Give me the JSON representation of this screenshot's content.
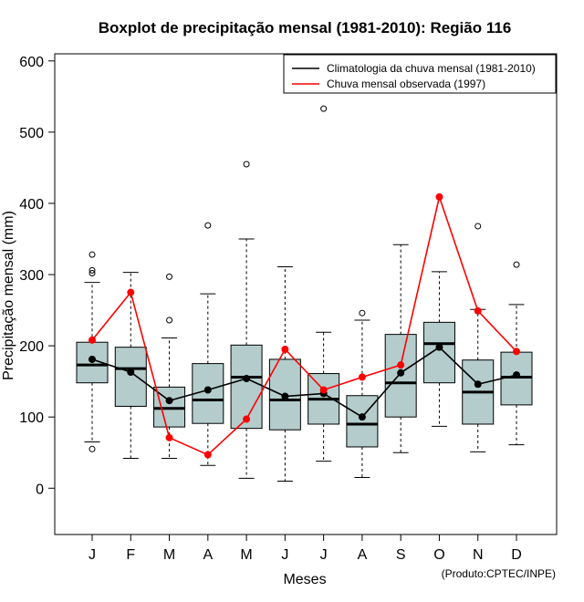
{
  "chart_data": {
    "type": "boxplot",
    "title": "Boxplot de precipitação mensal (1981-2010): Região 116",
    "xlabel": "Meses",
    "ylabel": "Precipitação mensal (mm)",
    "ylim": [
      -65,
      610
    ],
    "yticks": [
      0,
      100,
      200,
      300,
      400,
      500,
      600
    ],
    "categories": [
      "J",
      "F",
      "M",
      "A",
      "M",
      "J",
      "J",
      "A",
      "S",
      "O",
      "N",
      "D"
    ],
    "boxes": [
      {
        "whisker_low": 65,
        "q1": 148,
        "median": 173,
        "q3": 205,
        "whisker_high": 289,
        "outliers": [
          55,
          302,
          306,
          328
        ]
      },
      {
        "whisker_low": 42,
        "q1": 115,
        "median": 168,
        "q3": 198,
        "whisker_high": 303,
        "outliers": []
      },
      {
        "whisker_low": 42,
        "q1": 86,
        "median": 112,
        "q3": 142,
        "whisker_high": 211,
        "outliers": [
          236,
          297
        ]
      },
      {
        "whisker_low": 32,
        "q1": 91,
        "median": 124,
        "q3": 175,
        "whisker_high": 273,
        "outliers": [
          369
        ]
      },
      {
        "whisker_low": 14,
        "q1": 84,
        "median": 156,
        "q3": 201,
        "whisker_high": 350,
        "outliers": [
          455
        ]
      },
      {
        "whisker_low": 10,
        "q1": 82,
        "median": 124,
        "q3": 181,
        "whisker_high": 311,
        "outliers": []
      },
      {
        "whisker_low": 38,
        "q1": 90,
        "median": 125,
        "q3": 161,
        "whisker_high": 219,
        "outliers": [
          533
        ]
      },
      {
        "whisker_low": 15,
        "q1": 58,
        "median": 90,
        "q3": 130,
        "whisker_high": 236,
        "outliers": [
          246
        ]
      },
      {
        "whisker_low": 50,
        "q1": 100,
        "median": 148,
        "q3": 216,
        "whisker_high": 342,
        "outliers": []
      },
      {
        "whisker_low": 87,
        "q1": 148,
        "median": 203,
        "q3": 233,
        "whisker_high": 304,
        "outliers": []
      },
      {
        "whisker_low": 51,
        "q1": 90,
        "median": 135,
        "q3": 180,
        "whisker_high": 251,
        "outliers": [
          368
        ]
      },
      {
        "whisker_low": 61,
        "q1": 117,
        "median": 156,
        "q3": 191,
        "whisker_high": 258,
        "outliers": [
          314
        ]
      }
    ],
    "series": [
      {
        "name": "Climatologia da chuva mensal (1981-2010)",
        "color": "#000000",
        "values": [
          181,
          163,
          123,
          138,
          154,
          129,
          133,
          100,
          162,
          198,
          146,
          159
        ]
      },
      {
        "name": "Chuva mensal observada (1997)",
        "color": "#ff0000",
        "values": [
          208,
          275,
          71,
          47,
          97,
          195,
          138,
          156,
          173,
          409,
          249,
          192
        ]
      }
    ],
    "legend_position": "top-right",
    "box_fill": "#b4cccc",
    "grid": false,
    "credit": "(Produto:CPTEC/INPE)"
  }
}
